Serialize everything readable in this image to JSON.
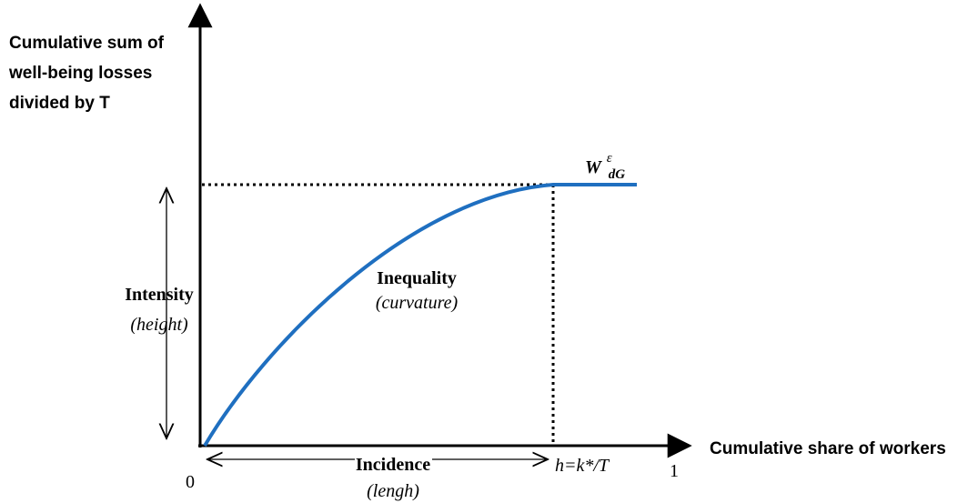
{
  "y_axis": {
    "label_lines": [
      "Cumulative sum of",
      "well-being losses",
      "divided by T"
    ]
  },
  "x_axis": {
    "label": "Cumulative share of workers",
    "start": "0",
    "end": "1",
    "h_label": "h=k*/T"
  },
  "curve_label": {
    "base": "W",
    "superscript": "ε",
    "subscript": "dG"
  },
  "intensity": {
    "title": "Intensity",
    "note": "(height)"
  },
  "inequality": {
    "title": "Inequality",
    "note": "(curvature)"
  },
  "incidence": {
    "title": "Incidence",
    "note": "(lengh)"
  }
}
